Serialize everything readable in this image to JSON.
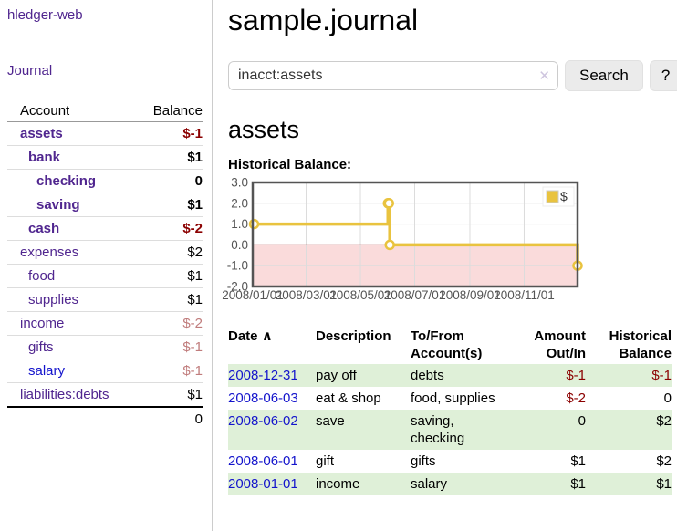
{
  "app": {
    "title": "hledger-web",
    "nav_journal": "Journal"
  },
  "colors": {
    "link_purple": "#50268f",
    "link_blue": "#1414cc",
    "negative_red": "#8b0000",
    "soft_negative_rose": "#c07c7c",
    "row_stripe_green": "#dff0d8",
    "chart_gold": "#e9c33f",
    "chart_negative_region_pink": "#fadbdb",
    "chart_zero_line_red": "#a40000",
    "chart_border_gray": "#545454"
  },
  "sidebar": {
    "table": {
      "col_account": "Account",
      "col_balance": "Balance"
    },
    "accounts": [
      {
        "name": "assets",
        "balance": "$-1",
        "indent": 0,
        "bold": true,
        "balance_tone": "negative",
        "link_tone": "visited"
      },
      {
        "name": "bank",
        "balance": "$1",
        "indent": 1,
        "bold": true,
        "balance_tone": "normal",
        "link_tone": "visited"
      },
      {
        "name": "checking",
        "balance": "0",
        "indent": 2,
        "bold": true,
        "balance_tone": "normal",
        "link_tone": "visited"
      },
      {
        "name": "saving",
        "balance": "$1",
        "indent": 2,
        "bold": true,
        "balance_tone": "normal",
        "link_tone": "visited"
      },
      {
        "name": "cash",
        "balance": "$-2",
        "indent": 1,
        "bold": true,
        "balance_tone": "negative",
        "link_tone": "visited"
      },
      {
        "name": "expenses",
        "balance": "$2",
        "indent": 0,
        "bold": false,
        "balance_tone": "normal",
        "link_tone": "visited"
      },
      {
        "name": "food",
        "balance": "$1",
        "indent": 1,
        "bold": false,
        "balance_tone": "normal",
        "link_tone": "visited"
      },
      {
        "name": "supplies",
        "balance": "$1",
        "indent": 1,
        "bold": false,
        "balance_tone": "normal",
        "link_tone": "visited"
      },
      {
        "name": "income",
        "balance": "$-2",
        "indent": 0,
        "bold": false,
        "balance_tone": "soft-negative",
        "link_tone": "visited"
      },
      {
        "name": "gifts",
        "balance": "$-1",
        "indent": 1,
        "bold": false,
        "balance_tone": "soft-negative",
        "link_tone": "visited"
      },
      {
        "name": "salary",
        "balance": "$-1",
        "indent": 1,
        "bold": false,
        "balance_tone": "soft-negative",
        "link_tone": "unvisited"
      },
      {
        "name": "liabilities:debts",
        "balance": "$1",
        "indent": 0,
        "bold": false,
        "balance_tone": "normal",
        "link_tone": "visited"
      }
    ],
    "total": "0"
  },
  "header": {
    "title": "sample.journal"
  },
  "search": {
    "value": "inacct:assets",
    "clear_icon": "✕",
    "button": "Search",
    "help_button": "?"
  },
  "account_page": {
    "title": "assets",
    "chart_label": "Historical Balance:"
  },
  "chart_data": {
    "type": "line",
    "title": "Historical Balance",
    "style": "step",
    "series": [
      {
        "name": "$",
        "color": "#e9c33f",
        "points": [
          [
            "2008-01-01",
            1
          ],
          [
            "2008-06-01",
            2
          ],
          [
            "2008-06-02",
            2
          ],
          [
            "2008-06-03",
            0
          ],
          [
            "2008-12-31",
            -1
          ]
        ]
      }
    ],
    "x_range": [
      "2008-01-01",
      "2008-12-31"
    ],
    "ylim": [
      -2.0,
      3.0
    ],
    "yticks": [
      3.0,
      2.0,
      1.0,
      0.0,
      -1.0,
      -2.0
    ],
    "xticks": [
      "2008/01/01",
      "2008/03/01",
      "2008/05/01",
      "2008/07/01",
      "2008/09/01",
      "2008/11/01"
    ],
    "legend_position": "top-right",
    "grid": true,
    "negative_region_color": "#fadbdb",
    "zero_line_color": "#a40000"
  },
  "register": {
    "columns": {
      "date": "Date",
      "sort_icon": "∧",
      "description": "Description",
      "accounts": "To/From Account(s)",
      "amount": "Amount Out/In",
      "balance": "Historical Balance"
    },
    "rows": [
      {
        "date": "2008-12-31",
        "description": "pay off",
        "accounts": "debts",
        "amount": "$-1",
        "amount_tone": "negative",
        "balance": "$-1",
        "balance_tone": "negative"
      },
      {
        "date": "2008-06-03",
        "description": "eat & shop",
        "accounts": "food, supplies",
        "amount": "$-2",
        "amount_tone": "negative",
        "balance": "0",
        "balance_tone": "normal"
      },
      {
        "date": "2008-06-02",
        "description": "save",
        "accounts": "saving, checking",
        "amount": "0",
        "amount_tone": "normal",
        "balance": "$2",
        "balance_tone": "normal"
      },
      {
        "date": "2008-06-01",
        "description": "gift",
        "accounts": "gifts",
        "amount": "$1",
        "amount_tone": "normal",
        "balance": "$2",
        "balance_tone": "normal"
      },
      {
        "date": "2008-01-01",
        "description": "income",
        "accounts": "salary",
        "amount": "$1",
        "amount_tone": "normal",
        "balance": "$1",
        "balance_tone": "normal"
      }
    ]
  }
}
